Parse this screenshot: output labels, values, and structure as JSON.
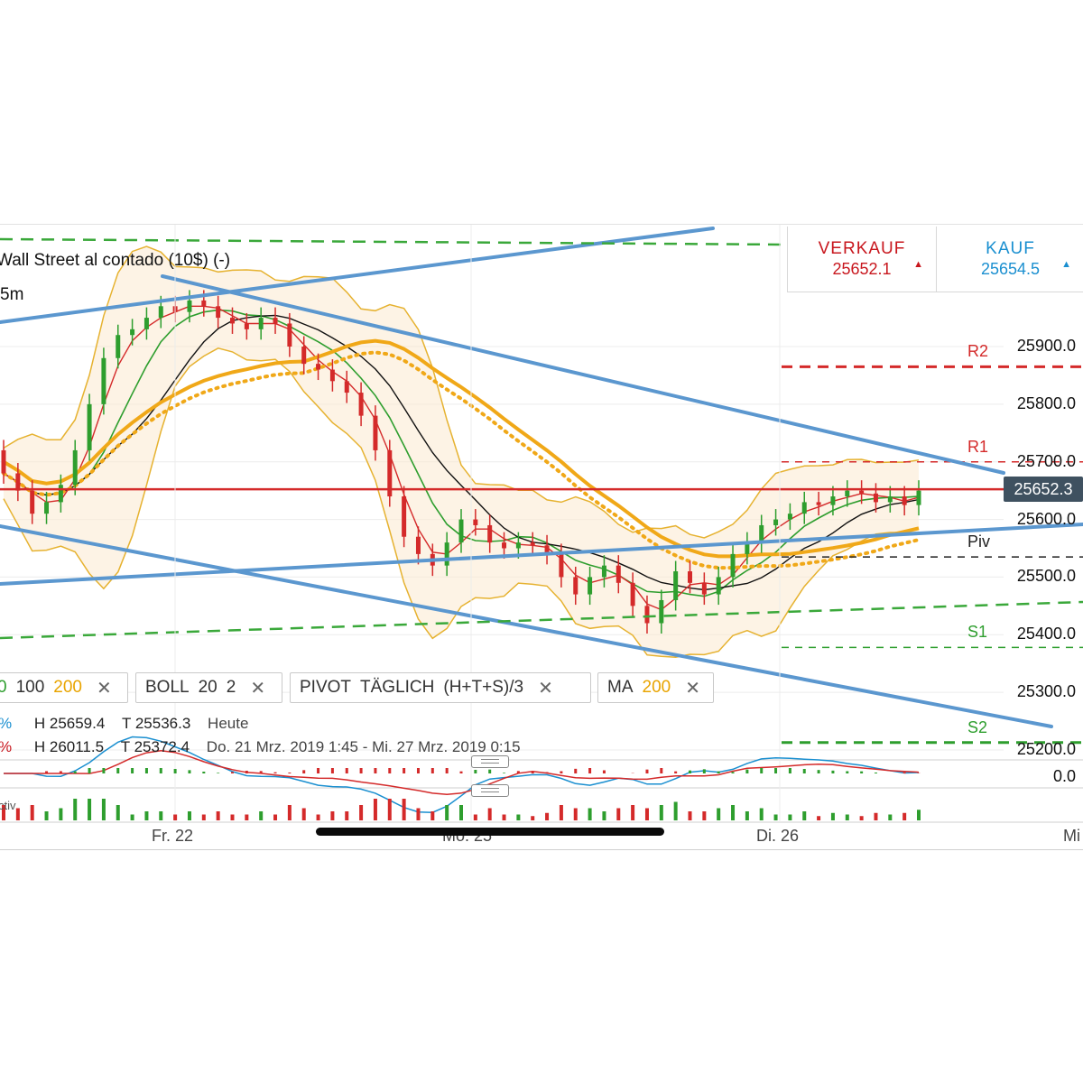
{
  "header": {
    "title": "Wall Street al contado (10$) (-)",
    "interval": "5m"
  },
  "trade": {
    "sell_label": "VERKAUF",
    "sell_price": "25652.1",
    "buy_label": "KAUF",
    "buy_price": "25654.5",
    "sell_color": "#c8171e",
    "buy_color": "#1a8fd0"
  },
  "indicators": [
    {
      "key": "ma",
      "parts": [
        "0",
        "100",
        "200"
      ]
    },
    {
      "key": "boll",
      "parts": [
        "BOLL",
        "20",
        "2"
      ]
    },
    {
      "key": "pivot",
      "parts": [
        "PIVOT",
        "TÄGLICH",
        "(H+T+S)/3"
      ]
    },
    {
      "key": "ma200",
      "parts": [
        "MA",
        "200"
      ]
    }
  ],
  "stats": {
    "row1": {
      "pct": "%",
      "high": "H 25659.4",
      "low": "T 25536.3",
      "period": "Heute"
    },
    "row2": {
      "pct": "%",
      "high": "H 26011.5",
      "low": "T 25372.4",
      "period": "Do. 21 Mrz. 2019 1:45 - Mi. 27 Mrz. 2019 0:15"
    }
  },
  "volume_label": "ctiv",
  "icons": {
    "close": "close-icon",
    "up_arrow": "triangle-up-icon",
    "handle": "drag-handle-icon"
  },
  "chart_data": {
    "type": "candlestick",
    "instrument": "Wall Street al contado (10$) (-)",
    "interval": "5m",
    "y_axis": {
      "ticks": [
        "25200.0",
        "25300.0",
        "25400.0",
        "25500.0",
        "25600.0",
        "25700.0",
        "25800.0",
        "25900.0"
      ],
      "range": [
        25160,
        26010
      ]
    },
    "x_axis": {
      "tick_labels": [
        "Fr. 22",
        "Mo. 25",
        "Di. 26",
        "Mi"
      ]
    },
    "current_price": "25652.3",
    "pivot_levels": [
      {
        "name": "R2",
        "value": 25865,
        "color": "#d42a2a"
      },
      {
        "name": "R1",
        "value": 25700,
        "color": "#d42a2a"
      },
      {
        "name": "Piv",
        "value": 25535,
        "color": "#222222"
      },
      {
        "name": "S1",
        "value": 25378,
        "color": "#2e9e2e"
      },
      {
        "name": "S2",
        "value": 25213,
        "color": "#2e9e2e"
      }
    ],
    "macd_zero_label": "0.0",
    "series_colors": {
      "ma200": "#f0a818",
      "bollinger": "#e6b230",
      "ma_fast": "#d42a2a",
      "ma_mid": "#2e9e2e",
      "ma_slow": "#111111",
      "trendlines": "#5b97cf"
    },
    "candles": [
      [
        25720,
        25680
      ],
      [
        25680,
        25650
      ],
      [
        25650,
        25610
      ],
      [
        25610,
        25630
      ],
      [
        25630,
        25660
      ],
      [
        25660,
        25720
      ],
      [
        25720,
        25800
      ],
      [
        25800,
        25880
      ],
      [
        25880,
        25920
      ],
      [
        25920,
        25930
      ],
      [
        25930,
        25950
      ],
      [
        25950,
        25970
      ],
      [
        25970,
        25960
      ],
      [
        25960,
        25980
      ],
      [
        25980,
        25970
      ],
      [
        25970,
        25950
      ],
      [
        25950,
        25940
      ],
      [
        25940,
        25930
      ],
      [
        25930,
        25950
      ],
      [
        25950,
        25940
      ],
      [
        25940,
        25900
      ],
      [
        25900,
        25870
      ],
      [
        25870,
        25860
      ],
      [
        25860,
        25840
      ],
      [
        25840,
        25820
      ],
      [
        25820,
        25780
      ],
      [
        25780,
        25720
      ],
      [
        25720,
        25640
      ],
      [
        25640,
        25570
      ],
      [
        25570,
        25540
      ],
      [
        25540,
        25520
      ],
      [
        25520,
        25560
      ],
      [
        25560,
        25600
      ],
      [
        25600,
        25590
      ],
      [
        25590,
        25560
      ],
      [
        25560,
        25550
      ],
      [
        25550,
        25560
      ],
      [
        25560,
        25555
      ],
      [
        25555,
        25540
      ],
      [
        25540,
        25500
      ],
      [
        25500,
        25470
      ],
      [
        25470,
        25500
      ],
      [
        25500,
        25520
      ],
      [
        25520,
        25490
      ],
      [
        25490,
        25450
      ],
      [
        25450,
        25420
      ],
      [
        25420,
        25460
      ],
      [
        25460,
        25510
      ],
      [
        25510,
        25490
      ],
      [
        25490,
        25470
      ],
      [
        25470,
        25500
      ],
      [
        25500,
        25540
      ],
      [
        25540,
        25560
      ],
      [
        25560,
        25590
      ],
      [
        25590,
        25600
      ],
      [
        25600,
        25610
      ],
      [
        25610,
        25630
      ],
      [
        25630,
        25625
      ],
      [
        25625,
        25640
      ],
      [
        25640,
        25650
      ],
      [
        25650,
        25645
      ],
      [
        25645,
        25630
      ],
      [
        25630,
        25640
      ],
      [
        25640,
        25625
      ],
      [
        25625,
        25650
      ]
    ]
  }
}
